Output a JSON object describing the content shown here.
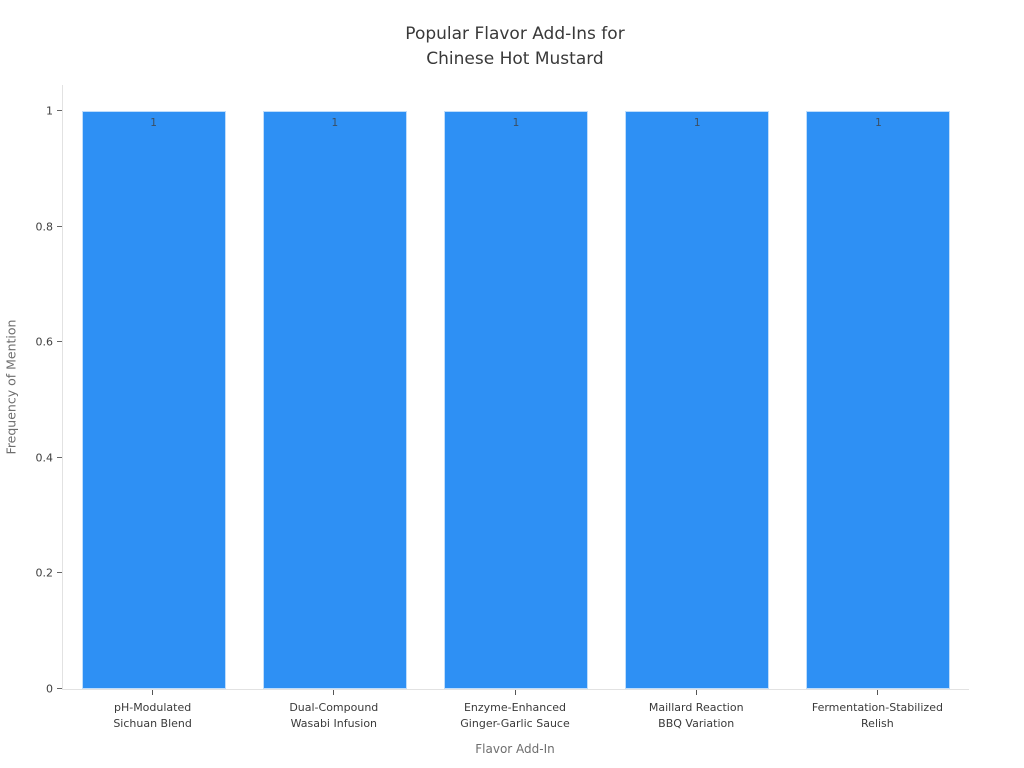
{
  "chart_data": {
    "type": "bar",
    "title": "Popular Flavor Add-Ins for\nChinese Hot Mustard",
    "xlabel": "Flavor Add-In",
    "ylabel": "Frequency of Mention",
    "categories": [
      [
        "pH-Modulated",
        "Sichuan Blend"
      ],
      [
        "Dual-Compound",
        "Wasabi Infusion"
      ],
      [
        "Enzyme-Enhanced",
        "Ginger-Garlic Sauce"
      ],
      [
        "Maillard Reaction",
        "BBQ Variation"
      ],
      [
        "Fermentation-Stabilized",
        "Relish"
      ]
    ],
    "values": [
      1,
      1,
      1,
      1,
      1
    ],
    "bar_labels": [
      "1",
      "1",
      "1",
      "1",
      "1"
    ],
    "yticks": [
      "0",
      "0.2",
      "0.4",
      "0.6",
      "0.8",
      "1"
    ],
    "ylim": [
      0,
      1.045
    ],
    "grid": false,
    "legend_visible": false,
    "bar_color": "#2e90f4",
    "title_color": "#393939",
    "axis_line_color": "#e2e2e2"
  }
}
